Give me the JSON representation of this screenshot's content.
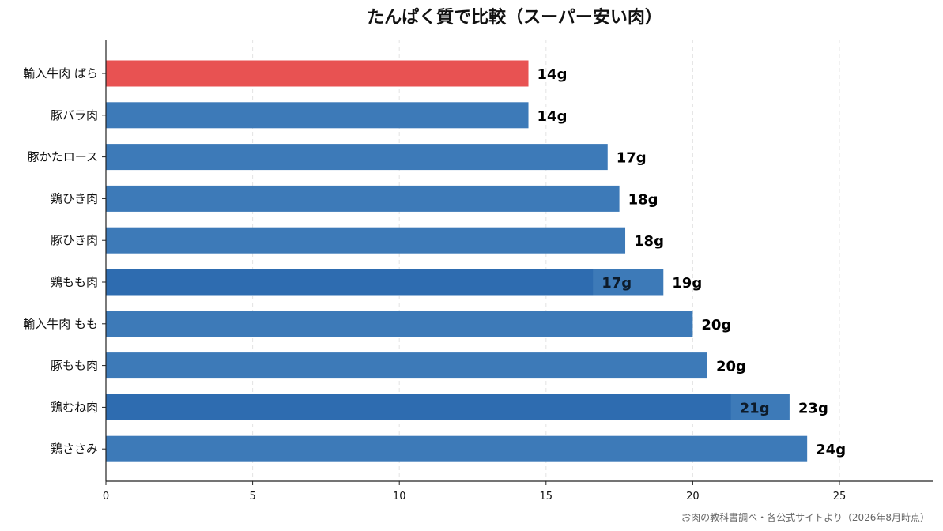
{
  "chart_data": {
    "type": "bar",
    "orientation": "horizontal",
    "title": "たんぱく質で比較（スーパー安い肉）",
    "xlabel": "",
    "ylabel": "",
    "xlim": [
      0,
      28.2
    ],
    "xticks": [
      0,
      5,
      10,
      15,
      20,
      25
    ],
    "grid": "vertical dashed",
    "categories": [
      "輸入牛肉 ばら",
      "豚バラ肉",
      "豚かたロース",
      "鶏ひき肉",
      "豚ひき肉",
      "鶏もも肉",
      "輸入牛肉 もも",
      "豚もも肉",
      "鶏むね肉",
      "鶏ささみ"
    ],
    "values": [
      14.4,
      14.4,
      17.1,
      17.5,
      17.7,
      19.0,
      20.0,
      20.5,
      23.3,
      23.9
    ],
    "value_labels": [
      "14g",
      "14g",
      "17g",
      "18g",
      "18g",
      "19g",
      "20g",
      "20g",
      "23g",
      "24g"
    ],
    "highlight_index": 0,
    "inner_segments": [
      {
        "category_index": 5,
        "value": 16.6,
        "label": "17g"
      },
      {
        "category_index": 8,
        "value": 21.3,
        "label": "21g"
      }
    ],
    "colors": {
      "highlight": "#e85252",
      "bar": "#3d7ab8",
      "inner_segment": "#2e6cb0",
      "grid": "#e3e3e3",
      "axis": "#222222"
    },
    "source_note": "お肉の教科書調べ・各公式サイトより（2026年8月時点）"
  }
}
